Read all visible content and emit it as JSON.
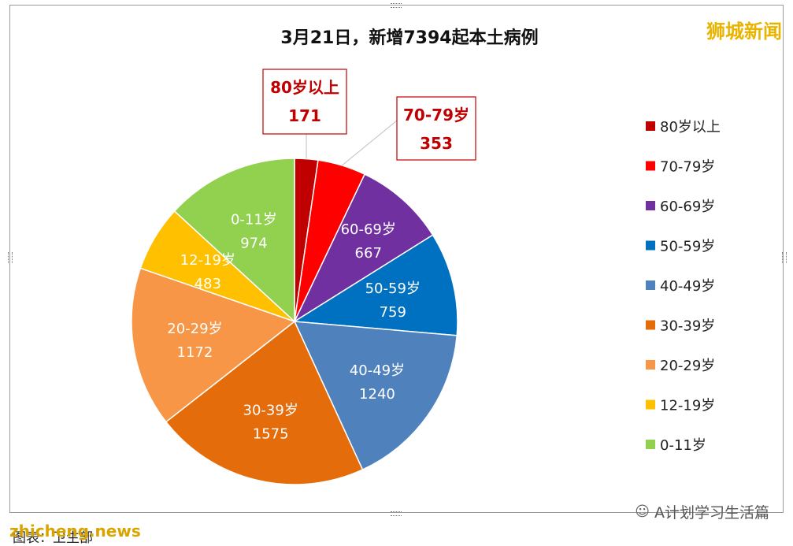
{
  "brand": "狮城新闻",
  "watermark": "A计划学习生活篇",
  "bottom_mark": "zhicheng.news",
  "caption": "图表：卫生部",
  "colors": {
    "80岁以上": "#c00000",
    "70-79岁": "#ff0000",
    "60-69岁": "#7030a0",
    "50-59岁": "#0070c0",
    "40-49岁": "#4f81bd",
    "30-39岁": "#e46c0a",
    "20-29岁": "#f79646",
    "12-19岁": "#ffc000",
    "0-11岁": "#92d050",
    "callout_text": "#c00000"
  },
  "chart_data": {
    "type": "pie",
    "title": "3月21日，新增7394起本土病例",
    "start_angle": "12 o'clock, clockwise",
    "legend_position": "right",
    "slices": [
      {
        "label": "80岁以上",
        "value": 171
      },
      {
        "label": "70-79岁",
        "value": 353
      },
      {
        "label": "60-69岁",
        "value": 667
      },
      {
        "label": "50-59岁",
        "value": 759
      },
      {
        "label": "40-49岁",
        "value": 1240
      },
      {
        "label": "30-39岁",
        "value": 1575
      },
      {
        "label": "20-29岁",
        "value": 1172
      },
      {
        "label": "12-19岁",
        "value": 483
      },
      {
        "label": "0-11岁",
        "value": 974
      }
    ]
  }
}
